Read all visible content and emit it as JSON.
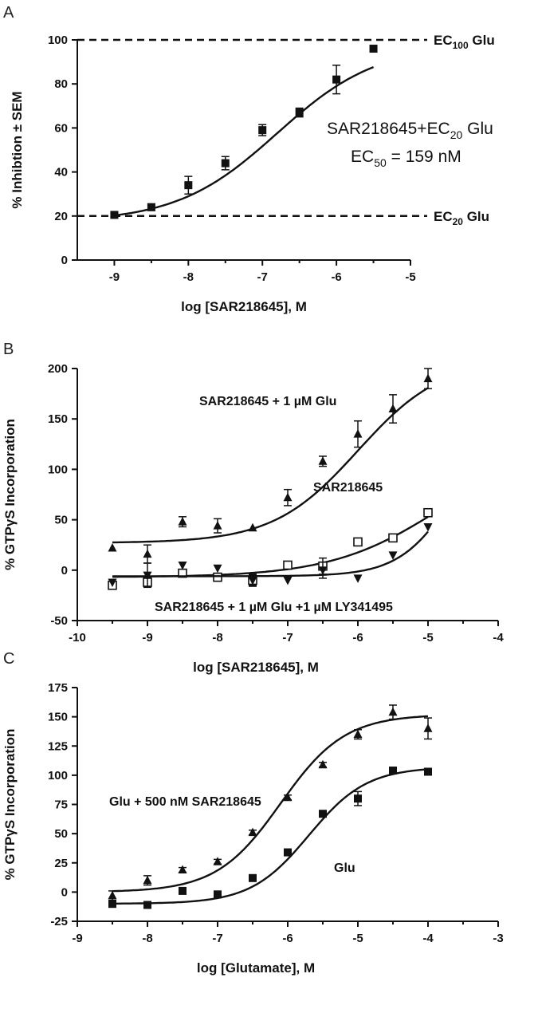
{
  "chart_data": [
    {
      "panel": "A",
      "type": "scatter",
      "xlabel": "log [SAR218645],  M",
      "ylabel": "% Inhibtion ± SEM",
      "xlim": [
        -9.5,
        -5
      ],
      "ylim": [
        0,
        100
      ],
      "xticks": [
        -9,
        -8,
        -7,
        -6,
        -5
      ],
      "yticks": [
        0,
        20,
        40,
        60,
        80,
        100
      ],
      "reference_lines": [
        {
          "y": 100,
          "label": "EC",
          "sub": "100",
          "suffix": " Glu"
        },
        {
          "y": 20,
          "label": "EC",
          "sub": "20",
          "suffix": " Glu"
        }
      ],
      "annotations": [
        {
          "parts": [
            "SAR218645+EC",
            "20",
            " Glu"
          ]
        },
        {
          "parts": [
            "EC",
            "50",
            " = 159 nM"
          ]
        }
      ],
      "series": [
        {
          "marker": "square",
          "x": [
            -9,
            -8.5,
            -8,
            -7.5,
            -7,
            -6.5,
            -6,
            -5.5
          ],
          "y": [
            20.5,
            24,
            34,
            44,
            59,
            67,
            82,
            96
          ],
          "err": [
            0.8,
            1.5,
            4,
            3,
            2.5,
            2,
            6.5,
            0
          ],
          "fit": {
            "bottom": 17.2,
            "top": 98,
            "logEC50": -6.8,
            "hill": 0.64
          }
        }
      ]
    },
    {
      "panel": "B",
      "type": "scatter",
      "xlabel": "log [SAR218645],  M",
      "ylabel": "% GTPγS Incorporation",
      "xlim": [
        -10,
        -4
      ],
      "ylim": [
        -50,
        200
      ],
      "xticks": [
        -10,
        -9,
        -8,
        -7,
        -6,
        -5,
        -4
      ],
      "yticks": [
        -50,
        0,
        50,
        100,
        150,
        200
      ],
      "series": [
        {
          "label": "SAR218645  + 1 µM Glu",
          "marker": "triangle-up",
          "x": [
            -9.5,
            -9,
            -8.5,
            -8,
            -7.5,
            -7,
            -6.5,
            -6,
            -5.5,
            -5
          ],
          "y": [
            22,
            16,
            48,
            44,
            42,
            72,
            108,
            135,
            160,
            190
          ],
          "err": [
            0,
            9,
            5,
            7,
            0,
            8,
            5,
            13,
            14,
            10
          ],
          "fit": {
            "bottom": 27,
            "top": 210,
            "logEC50": -6.0,
            "hill": 0.72
          }
        },
        {
          "label": "SAR218645",
          "marker": "square-open",
          "x": [
            -9.5,
            -9,
            -8.5,
            -8,
            -7.5,
            -7,
            -6.5,
            -6,
            -5.5,
            -5
          ],
          "y": [
            -15,
            -12,
            -3,
            -7,
            -10,
            5,
            4,
            28,
            32,
            57
          ],
          "err": [
            3,
            5,
            2,
            4,
            6,
            2,
            8,
            2,
            3,
            3
          ],
          "fit": {
            "bottom": -7,
            "top": 130,
            "logEC50": -4.8,
            "hill": 0.55
          }
        },
        {
          "label": "SAR218645 + 1 µM Glu  +1 µM LY341495",
          "marker": "triangle-down",
          "x": [
            -9.5,
            -9,
            -8.5,
            -8,
            -7.5,
            -7,
            -6.5,
            -6,
            -5.5,
            -5
          ],
          "y": [
            -12,
            -5,
            5,
            2,
            -10,
            -10,
            0,
            -8,
            15,
            43
          ],
          "err": [
            0,
            12,
            0,
            0,
            5,
            0,
            8,
            0,
            0,
            0
          ],
          "fit": {
            "bottom": -6,
            "top": 160,
            "logEC50": -4.6,
            "hill": 1.1
          }
        }
      ]
    },
    {
      "panel": "C",
      "type": "scatter",
      "xlabel": "log [Glutamate],  M",
      "ylabel": "% GTPγS Incorporation",
      "xlim": [
        -9,
        -3
      ],
      "ylim": [
        -25,
        175
      ],
      "xticks": [
        -9,
        -8,
        -7,
        -6,
        -5,
        -4,
        -3
      ],
      "yticks": [
        -25,
        0,
        25,
        50,
        75,
        100,
        125,
        150,
        175
      ],
      "series": [
        {
          "label": "Glu + 500 nM SAR218645",
          "marker": "triangle-up",
          "x": [
            -8.5,
            -8,
            -7.5,
            -7,
            -6.5,
            -6,
            -5.5,
            -5,
            -4.5,
            -4
          ],
          "y": [
            -3,
            10,
            19,
            26,
            51,
            81,
            109,
            135,
            154,
            140
          ],
          "err": [
            4,
            4,
            2,
            2,
            2,
            2,
            2,
            4,
            6,
            9
          ],
          "fit": {
            "bottom": 0,
            "top": 152,
            "logEC50": -6.1,
            "hill": 0.95
          }
        },
        {
          "label": "Glu",
          "marker": "square",
          "x": [
            -8.5,
            -8,
            -7.5,
            -7,
            -6.5,
            -6,
            -5.5,
            -5,
            -4.5,
            -4
          ],
          "y": [
            -10,
            -11,
            1,
            -2,
            12,
            34,
            67,
            80,
            104,
            103
          ],
          "err": [
            3,
            0,
            0,
            0,
            0,
            2,
            2,
            6,
            2,
            2
          ],
          "fit": {
            "bottom": -10,
            "top": 107,
            "logEC50": -5.7,
            "hill": 1.05
          }
        }
      ]
    }
  ]
}
